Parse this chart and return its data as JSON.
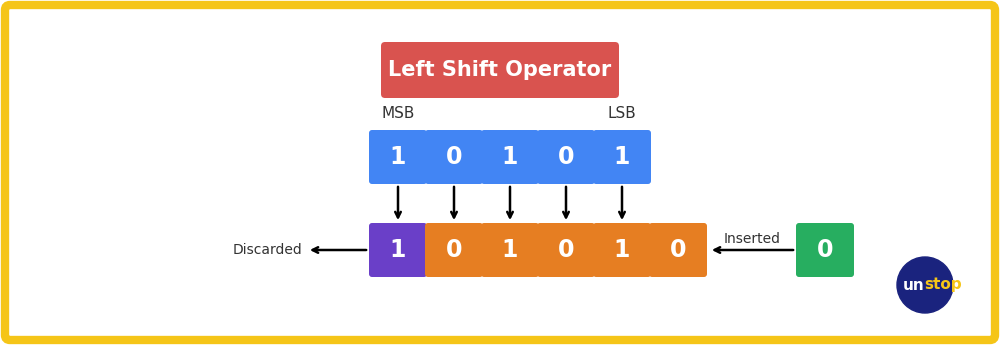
{
  "title": "Left Shift Operator",
  "title_bg": "#d9534f",
  "title_text_color": "#ffffff",
  "border_color": "#f5c518",
  "border_lw": 6,
  "bg_color": "#ffffff",
  "top_bits": [
    "1",
    "0",
    "1",
    "0",
    "1"
  ],
  "top_bit_color": "#4285f4",
  "top_bit_text_color": "#ffffff",
  "bottom_bits": [
    "1",
    "0",
    "1",
    "0",
    "1",
    "0"
  ],
  "bottom_bit_colors": [
    "#6a3fc8",
    "#e67e22",
    "#e67e22",
    "#e67e22",
    "#e67e22",
    "#e67e22"
  ],
  "bottom_bit_text_color": "#ffffff",
  "inserted_bit": "0",
  "inserted_bit_color": "#27ae60",
  "inserted_bit_text_color": "#ffffff",
  "msb_label": "MSB",
  "lsb_label": "LSB",
  "discarded_label": "Discarded",
  "inserted_label": "Inserted",
  "fig_width": 10.0,
  "fig_height": 3.45,
  "dpi": 100
}
